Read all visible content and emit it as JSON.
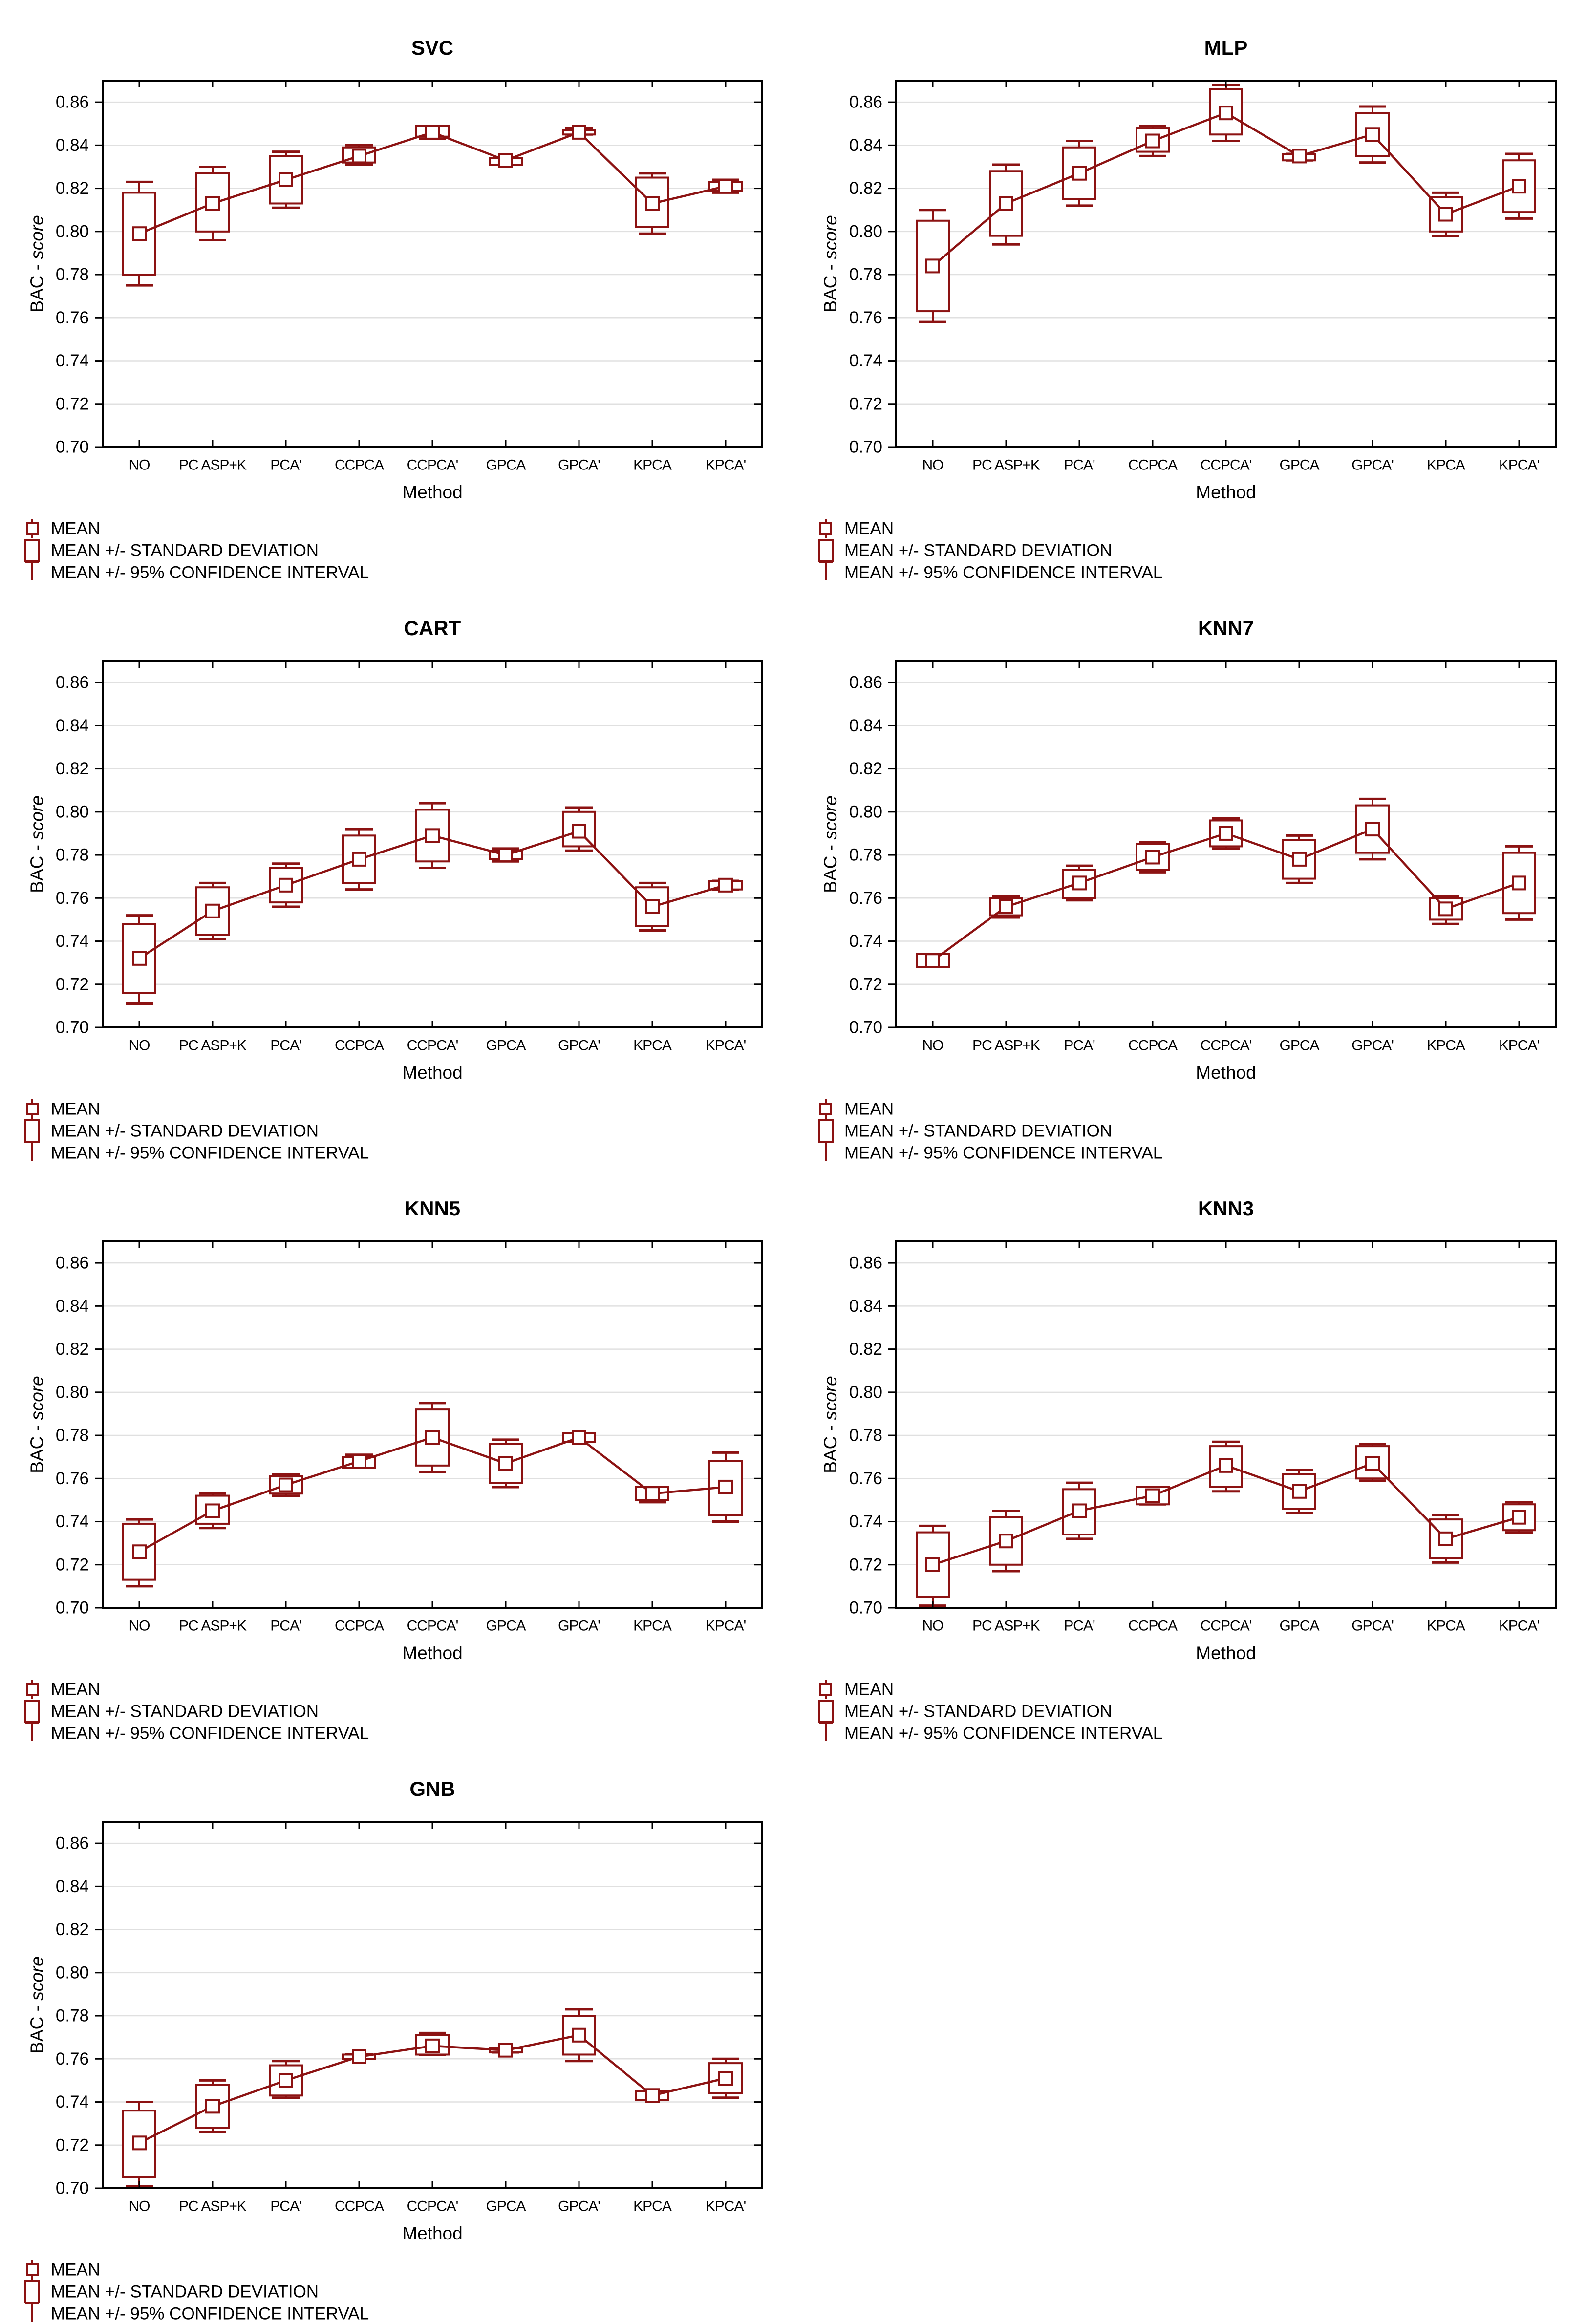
{
  "page": {
    "background": "#ffffff"
  },
  "style": {
    "series_color": "#8C1212",
    "grid_color": "#E0E0E0",
    "frame_color": "#000000",
    "text_color": "#000000",
    "box_fill": "#ffffff"
  },
  "legend": {
    "items": [
      {
        "glyph": "mean-square-icon",
        "label": "MEAN"
      },
      {
        "glyph": "stddev-box-icon",
        "label": "MEAN +/- STANDARD DEVIATION"
      },
      {
        "glyph": "ci-whisker-icon",
        "label": "MEAN +/- 95% CONFIDENCE INTERVAL"
      }
    ]
  },
  "axes": {
    "xlabel": "Method",
    "ylabel_prefix": "BAC - ",
    "ylabel_italic": "score",
    "ylim": [
      0.7,
      0.87
    ],
    "yticks": [
      0.7,
      0.72,
      0.74,
      0.76,
      0.78,
      0.8,
      0.82,
      0.84,
      0.86
    ],
    "categories": [
      "NO",
      "PC ASP+K",
      "PCA'",
      "CCPCA",
      "CCPCA'",
      "GPCA",
      "GPCA'",
      "KPCA",
      "KPCA'"
    ]
  },
  "chart_data": [
    {
      "type": "boxplot",
      "title": "SVC",
      "categories": [
        "NO",
        "PC ASP+K",
        "PCA'",
        "CCPCA",
        "CCPCA'",
        "GPCA",
        "GPCA'",
        "KPCA",
        "KPCA'"
      ],
      "mean": [
        0.799,
        0.813,
        0.824,
        0.835,
        0.846,
        0.833,
        0.846,
        0.813,
        0.821
      ],
      "box_low": [
        0.78,
        0.8,
        0.813,
        0.832,
        0.844,
        0.831,
        0.845,
        0.802,
        0.819
      ],
      "box_high": [
        0.818,
        0.827,
        0.835,
        0.839,
        0.849,
        0.834,
        0.847,
        0.825,
        0.823
      ],
      "whisker_low": [
        0.775,
        0.796,
        0.811,
        0.831,
        0.843,
        0.831,
        0.845,
        0.799,
        0.818
      ],
      "whisker_high": [
        0.823,
        0.83,
        0.837,
        0.84,
        0.849,
        0.834,
        0.848,
        0.827,
        0.824
      ]
    },
    {
      "type": "boxplot",
      "title": "MLP",
      "categories": [
        "NO",
        "PC ASP+K",
        "PCA'",
        "CCPCA",
        "CCPCA'",
        "GPCA",
        "GPCA'",
        "KPCA",
        "KPCA'"
      ],
      "mean": [
        0.784,
        0.813,
        0.827,
        0.842,
        0.855,
        0.835,
        0.845,
        0.808,
        0.821
      ],
      "box_low": [
        0.763,
        0.798,
        0.815,
        0.837,
        0.845,
        0.833,
        0.835,
        0.8,
        0.809
      ],
      "box_high": [
        0.805,
        0.828,
        0.839,
        0.848,
        0.866,
        0.836,
        0.855,
        0.816,
        0.833
      ],
      "whisker_low": [
        0.758,
        0.794,
        0.812,
        0.835,
        0.842,
        0.833,
        0.832,
        0.798,
        0.806
      ],
      "whisker_high": [
        0.81,
        0.831,
        0.842,
        0.849,
        0.868,
        0.836,
        0.858,
        0.818,
        0.836
      ]
    },
    {
      "type": "boxplot",
      "title": "CART",
      "categories": [
        "NO",
        "PC ASP+K",
        "PCA'",
        "CCPCA",
        "CCPCA'",
        "GPCA",
        "GPCA'",
        "KPCA",
        "KPCA'"
      ],
      "mean": [
        0.732,
        0.754,
        0.766,
        0.778,
        0.789,
        0.78,
        0.791,
        0.756,
        0.766
      ],
      "box_low": [
        0.716,
        0.743,
        0.758,
        0.767,
        0.777,
        0.778,
        0.784,
        0.747,
        0.764
      ],
      "box_high": [
        0.748,
        0.765,
        0.774,
        0.789,
        0.801,
        0.782,
        0.8,
        0.765,
        0.768
      ],
      "whisker_low": [
        0.711,
        0.741,
        0.756,
        0.764,
        0.774,
        0.777,
        0.782,
        0.745,
        0.764
      ],
      "whisker_high": [
        0.752,
        0.767,
        0.776,
        0.792,
        0.804,
        0.783,
        0.802,
        0.767,
        0.768
      ]
    },
    {
      "type": "boxplot",
      "title": "KNN7",
      "categories": [
        "NO",
        "PC ASP+K",
        "PCA'",
        "CCPCA",
        "CCPCA'",
        "GPCA",
        "GPCA'",
        "KPCA",
        "KPCA'"
      ],
      "mean": [
        0.731,
        0.756,
        0.767,
        0.779,
        0.79,
        0.778,
        0.792,
        0.755,
        0.767
      ],
      "box_low": [
        0.728,
        0.752,
        0.76,
        0.773,
        0.784,
        0.769,
        0.781,
        0.75,
        0.753
      ],
      "box_high": [
        0.734,
        0.76,
        0.773,
        0.785,
        0.796,
        0.787,
        0.803,
        0.76,
        0.781
      ],
      "whisker_low": [
        0.728,
        0.751,
        0.759,
        0.772,
        0.783,
        0.767,
        0.778,
        0.748,
        0.75
      ],
      "whisker_high": [
        0.734,
        0.761,
        0.775,
        0.786,
        0.797,
        0.789,
        0.806,
        0.761,
        0.784
      ]
    },
    {
      "type": "boxplot",
      "title": "KNN5",
      "categories": [
        "NO",
        "PC ASP+K",
        "PCA'",
        "CCPCA",
        "CCPCA'",
        "GPCA",
        "GPCA'",
        "KPCA",
        "KPCA'"
      ],
      "mean": [
        0.726,
        0.745,
        0.757,
        0.768,
        0.779,
        0.767,
        0.779,
        0.753,
        0.756
      ],
      "box_low": [
        0.713,
        0.739,
        0.753,
        0.765,
        0.766,
        0.758,
        0.777,
        0.75,
        0.743
      ],
      "box_high": [
        0.739,
        0.752,
        0.761,
        0.77,
        0.792,
        0.776,
        0.781,
        0.756,
        0.768
      ],
      "whisker_low": [
        0.71,
        0.737,
        0.752,
        0.765,
        0.763,
        0.756,
        0.777,
        0.749,
        0.74
      ],
      "whisker_high": [
        0.741,
        0.753,
        0.762,
        0.771,
        0.795,
        0.778,
        0.781,
        0.756,
        0.772
      ]
    },
    {
      "type": "boxplot",
      "title": "KNN3",
      "categories": [
        "NO",
        "PC ASP+K",
        "PCA'",
        "CCPCA",
        "CCPCA'",
        "GPCA",
        "GPCA'",
        "KPCA",
        "KPCA'"
      ],
      "mean": [
        0.72,
        0.731,
        0.745,
        0.752,
        0.766,
        0.754,
        0.767,
        0.732,
        0.742
      ],
      "box_low": [
        0.705,
        0.72,
        0.734,
        0.748,
        0.756,
        0.746,
        0.76,
        0.723,
        0.736
      ],
      "box_high": [
        0.735,
        0.742,
        0.755,
        0.756,
        0.775,
        0.762,
        0.775,
        0.741,
        0.748
      ],
      "whisker_low": [
        0.701,
        0.717,
        0.732,
        0.748,
        0.754,
        0.744,
        0.759,
        0.721,
        0.735
      ],
      "whisker_high": [
        0.738,
        0.745,
        0.758,
        0.756,
        0.777,
        0.764,
        0.776,
        0.743,
        0.749
      ]
    },
    {
      "type": "boxplot",
      "title": "GNB",
      "categories": [
        "NO",
        "PC ASP+K",
        "PCA'",
        "CCPCA",
        "CCPCA'",
        "GPCA",
        "GPCA'",
        "KPCA",
        "KPCA'"
      ],
      "mean": [
        0.721,
        0.738,
        0.75,
        0.761,
        0.766,
        0.764,
        0.771,
        0.743,
        0.751
      ],
      "box_low": [
        0.705,
        0.728,
        0.743,
        0.76,
        0.762,
        0.763,
        0.762,
        0.741,
        0.744
      ],
      "box_high": [
        0.736,
        0.748,
        0.757,
        0.762,
        0.771,
        0.765,
        0.78,
        0.745,
        0.758
      ],
      "whisker_low": [
        0.701,
        0.726,
        0.742,
        0.76,
        0.762,
        0.763,
        0.759,
        0.741,
        0.742
      ],
      "whisker_high": [
        0.74,
        0.75,
        0.759,
        0.762,
        0.772,
        0.765,
        0.783,
        0.745,
        0.76
      ]
    }
  ]
}
